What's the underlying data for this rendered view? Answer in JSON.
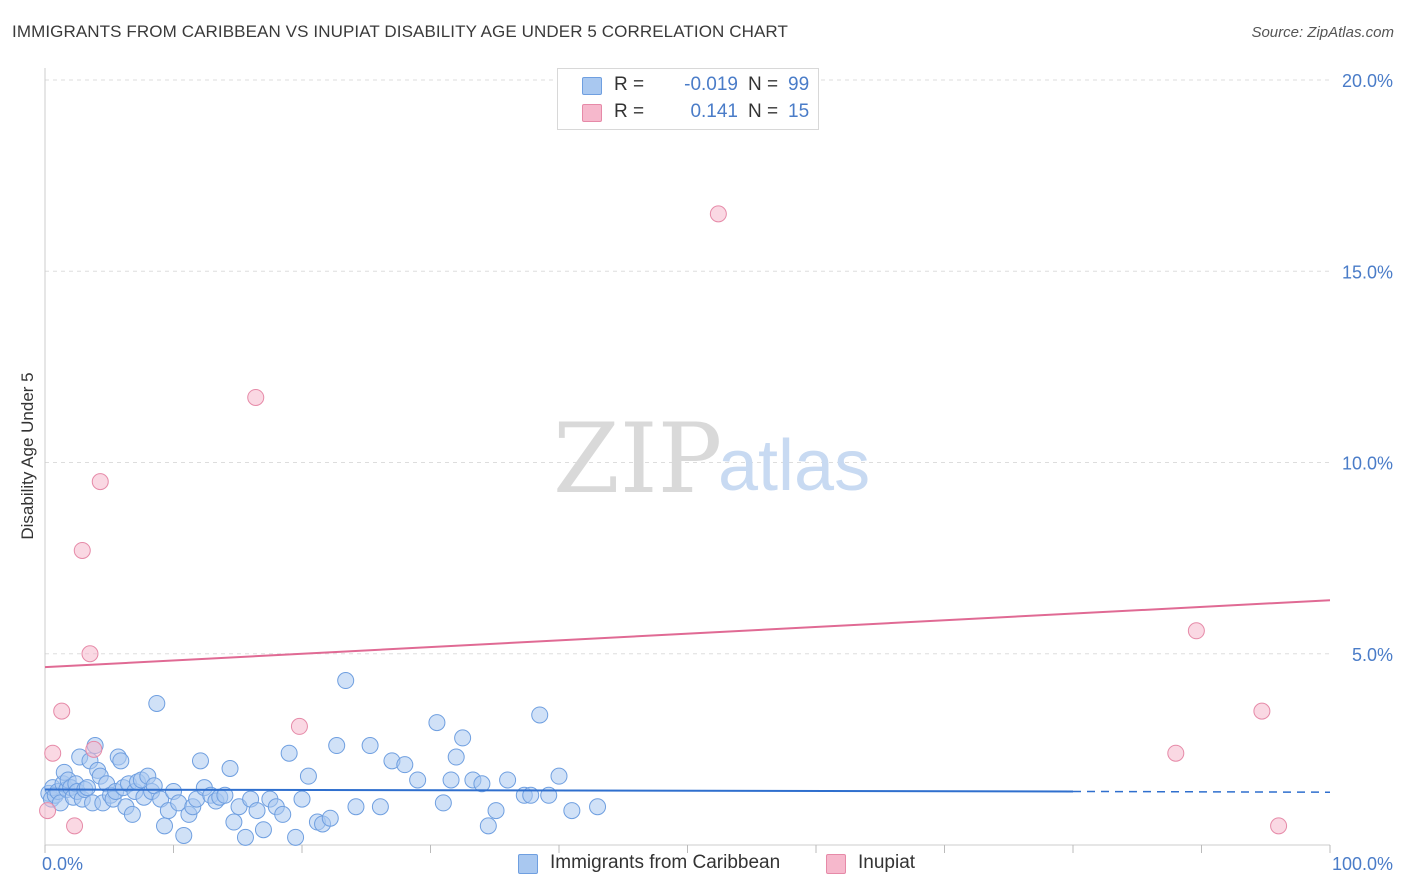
{
  "title": "IMMIGRANTS FROM CARIBBEAN VS INUPIAT DISABILITY AGE UNDER 5 CORRELATION CHART",
  "source": "Source: ZipAtlas.com",
  "watermark": {
    "zip": "ZIP",
    "atlas": "atlas"
  },
  "legend_top": [
    {
      "r_label": "R =",
      "r_value": "-0.019",
      "n_label": "N =",
      "n_value": "99"
    },
    {
      "r_label": "R =",
      "r_value": "0.141",
      "n_label": "N =",
      "n_value": "15"
    }
  ],
  "legend_bottom": [
    {
      "label": "Immigrants from Caribbean"
    },
    {
      "label": "Inupiat"
    }
  ],
  "colors": {
    "caribbean_fill": "#a9c8f0",
    "caribbean_stroke": "#6f9fe0",
    "caribbean_line": "#2f6fce",
    "inupiat_fill": "#f6b8cc",
    "inupiat_stroke": "#e68aa8",
    "inupiat_line": "#e06a94",
    "tick": "#4a7cc8",
    "grid": "#dddddd"
  },
  "chart_data": {
    "type": "scatter",
    "title": "IMMIGRANTS FROM CARIBBEAN VS INUPIAT DISABILITY AGE UNDER 5 CORRELATION CHART",
    "xlabel": "",
    "ylabel": "Disability Age Under 5",
    "xlim": [
      0,
      100
    ],
    "ylim": [
      0,
      20.5
    ],
    "x_ticks": [
      {
        "value": 0,
        "label": "0.0%"
      },
      {
        "value": 100,
        "label": "100.0%"
      }
    ],
    "y_ticks": [
      {
        "value": 5,
        "label": "5.0%"
      },
      {
        "value": 10,
        "label": "10.0%"
      },
      {
        "value": 15,
        "label": "15.0%"
      },
      {
        "value": 20,
        "label": "20.0%"
      }
    ],
    "series": [
      {
        "name": "Immigrants from Caribbean",
        "color": "#a9c8f0",
        "trend": {
          "x": [
            0,
            80
          ],
          "y": [
            1.45,
            1.4
          ],
          "dashed_to": [
            100,
            1.38
          ]
        },
        "points": [
          [
            0.3,
            1.35
          ],
          [
            0.5,
            1.2
          ],
          [
            0.6,
            1.5
          ],
          [
            0.8,
            1.3
          ],
          [
            1.0,
            1.4
          ],
          [
            1.2,
            1.1
          ],
          [
            1.4,
            1.6
          ],
          [
            1.5,
            1.9
          ],
          [
            1.7,
            1.45
          ],
          [
            1.8,
            1.7
          ],
          [
            2.0,
            1.5
          ],
          [
            2.2,
            1.25
          ],
          [
            2.4,
            1.6
          ],
          [
            2.5,
            1.4
          ],
          [
            2.7,
            2.3
          ],
          [
            2.9,
            1.2
          ],
          [
            3.1,
            1.45
          ],
          [
            3.3,
            1.5
          ],
          [
            3.5,
            2.2
          ],
          [
            3.7,
            1.1
          ],
          [
            3.9,
            2.6
          ],
          [
            4.1,
            1.95
          ],
          [
            4.3,
            1.8
          ],
          [
            4.5,
            1.1
          ],
          [
            4.8,
            1.6
          ],
          [
            5.1,
            1.3
          ],
          [
            5.3,
            1.2
          ],
          [
            5.5,
            1.4
          ],
          [
            5.7,
            2.3
          ],
          [
            5.9,
            2.2
          ],
          [
            6.1,
            1.5
          ],
          [
            6.3,
            1.0
          ],
          [
            6.5,
            1.6
          ],
          [
            6.8,
            0.8
          ],
          [
            7.0,
            1.4
          ],
          [
            7.2,
            1.65
          ],
          [
            7.5,
            1.7
          ],
          [
            7.7,
            1.25
          ],
          [
            8.0,
            1.8
          ],
          [
            8.3,
            1.4
          ],
          [
            8.5,
            1.55
          ],
          [
            8.7,
            3.7
          ],
          [
            9.0,
            1.2
          ],
          [
            9.3,
            0.5
          ],
          [
            9.6,
            0.9
          ],
          [
            10.0,
            1.4
          ],
          [
            10.4,
            1.1
          ],
          [
            10.8,
            0.25
          ],
          [
            11.2,
            0.8
          ],
          [
            11.5,
            1.0
          ],
          [
            11.8,
            1.2
          ],
          [
            12.1,
            2.2
          ],
          [
            12.4,
            1.5
          ],
          [
            12.9,
            1.3
          ],
          [
            13.3,
            1.15
          ],
          [
            13.6,
            1.25
          ],
          [
            14.0,
            1.3
          ],
          [
            14.4,
            2.0
          ],
          [
            14.7,
            0.6
          ],
          [
            15.1,
            1.0
          ],
          [
            15.6,
            0.2
          ],
          [
            16.0,
            1.2
          ],
          [
            16.5,
            0.9
          ],
          [
            17.0,
            0.4
          ],
          [
            17.5,
            1.2
          ],
          [
            18.0,
            1.0
          ],
          [
            18.5,
            0.8
          ],
          [
            19.0,
            2.4
          ],
          [
            19.5,
            0.2
          ],
          [
            20.0,
            1.2
          ],
          [
            20.5,
            1.8
          ],
          [
            21.2,
            0.6
          ],
          [
            21.6,
            0.55
          ],
          [
            22.2,
            0.7
          ],
          [
            22.7,
            2.6
          ],
          [
            23.4,
            4.3
          ],
          [
            24.2,
            1.0
          ],
          [
            25.3,
            2.6
          ],
          [
            26.1,
            1.0
          ],
          [
            27.0,
            2.2
          ],
          [
            28.0,
            2.1
          ],
          [
            29.0,
            1.7
          ],
          [
            30.5,
            3.2
          ],
          [
            31.0,
            1.1
          ],
          [
            31.6,
            1.7
          ],
          [
            32.0,
            2.3
          ],
          [
            32.5,
            2.8
          ],
          [
            33.3,
            1.7
          ],
          [
            34.0,
            1.6
          ],
          [
            34.5,
            0.5
          ],
          [
            35.1,
            0.9
          ],
          [
            36.0,
            1.7
          ],
          [
            37.3,
            1.3
          ],
          [
            37.8,
            1.3
          ],
          [
            38.5,
            3.4
          ],
          [
            39.2,
            1.3
          ],
          [
            40.0,
            1.8
          ],
          [
            41.0,
            0.9
          ],
          [
            43.0,
            1.0
          ]
        ]
      },
      {
        "name": "Inupiat",
        "color": "#f6b8cc",
        "trend": {
          "x": [
            0,
            100
          ],
          "y": [
            4.65,
            6.4
          ]
        },
        "points": [
          [
            0.2,
            0.9
          ],
          [
            0.6,
            2.4
          ],
          [
            1.3,
            3.5
          ],
          [
            2.3,
            0.5
          ],
          [
            2.9,
            7.7
          ],
          [
            3.5,
            5.0
          ],
          [
            3.8,
            2.5
          ],
          [
            4.3,
            9.5
          ],
          [
            16.4,
            11.7
          ],
          [
            19.8,
            3.1
          ],
          [
            52.4,
            16.5
          ],
          [
            88.0,
            2.4
          ],
          [
            89.6,
            5.6
          ],
          [
            94.7,
            3.5
          ],
          [
            96.0,
            0.5
          ]
        ]
      }
    ]
  }
}
